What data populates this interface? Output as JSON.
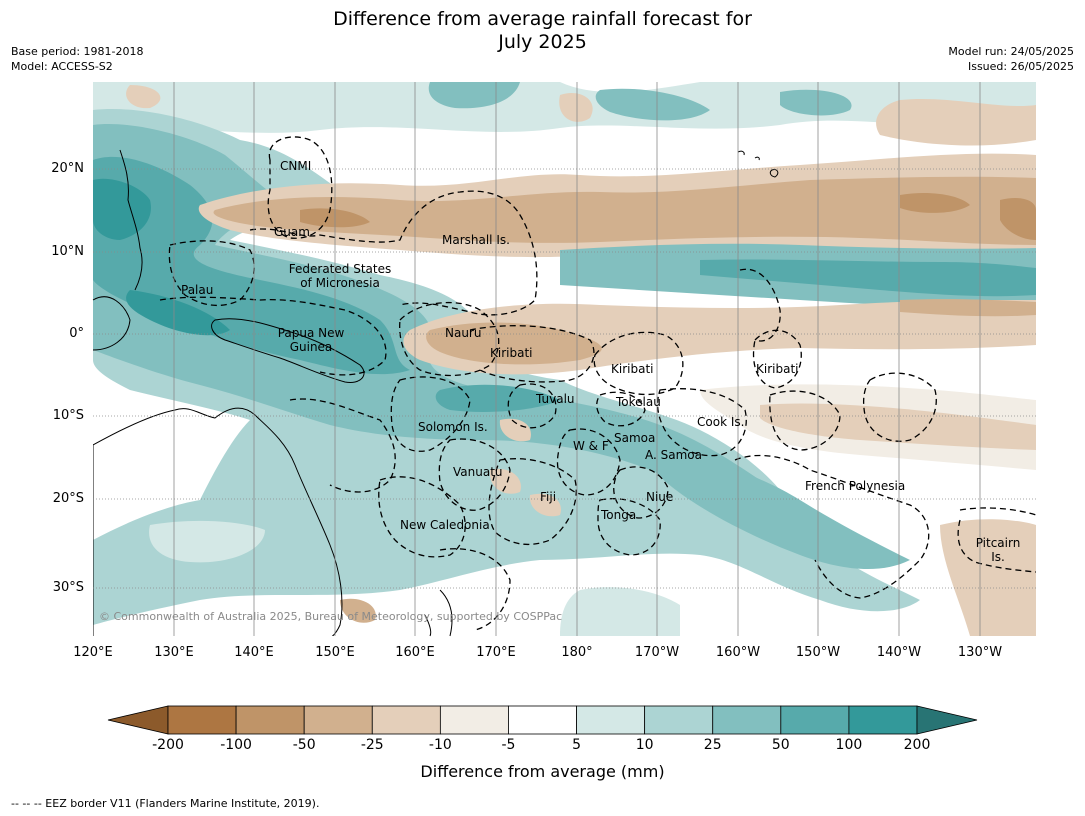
{
  "title_line1": "Difference from average rainfall forecast for",
  "title_line2": "July 2025",
  "base_period": "Base period: 1981-2018",
  "model": "Model: ACCESS-S2",
  "model_run": "Model run: 24/05/2025",
  "issued": "Issued: 26/05/2025",
  "lat_labels": [
    "20°N",
    "10°N",
    "0°",
    "10°S",
    "20°S",
    "30°S"
  ],
  "lon_labels": [
    "120°E",
    "130°E",
    "140°E",
    "150°E",
    "160°E",
    "170°E",
    "180°",
    "170°W",
    "160°W",
    "150°W",
    "140°W",
    "130°W"
  ],
  "regions": [
    {
      "name": "CNMI"
    },
    {
      "name": "Guam"
    },
    {
      "name": "Marshall Is."
    },
    {
      "name": "Federated States of Micronesia"
    },
    {
      "name": "Palau"
    },
    {
      "name": "Papua New Guinea"
    },
    {
      "name": "Nauru"
    },
    {
      "name": "Kiribati"
    },
    {
      "name": "Kiribati"
    },
    {
      "name": "Kiribati"
    },
    {
      "name": "Tuvalu"
    },
    {
      "name": "Tokelau"
    },
    {
      "name": "Solomon Is."
    },
    {
      "name": "Cook Is."
    },
    {
      "name": "Samoa"
    },
    {
      "name": "W & F"
    },
    {
      "name": "A. Samoa"
    },
    {
      "name": "Vanuatu"
    },
    {
      "name": "Fiji"
    },
    {
      "name": "Niue"
    },
    {
      "name": "Tonga"
    },
    {
      "name": "French Polynesia"
    },
    {
      "name": "New Caledonia"
    },
    {
      "name": "Pitcairn Is."
    }
  ],
  "copyright": "© Commonwealth of Australia 2025, Bureau of Meteorology, supported by COSPPac",
  "colorbar": {
    "labels": [
      "-200",
      "-100",
      "-50",
      "-25",
      "-10",
      "-5",
      "5",
      "10",
      "25",
      "50",
      "100",
      "200"
    ],
    "colors": [
      "#8c5a2b",
      "#ad7642",
      "#bf9468",
      "#d1b08e",
      "#e4cfba",
      "#f2ede5",
      "#ffffff",
      "#d4e8e6",
      "#acd4d3",
      "#82bfbf",
      "#57aaab",
      "#33999a",
      "#287474"
    ],
    "title": "Difference from average (mm)"
  },
  "footnote": "--  --  -- EEZ border V11 (Flanders Marine Institute, 2019)."
}
